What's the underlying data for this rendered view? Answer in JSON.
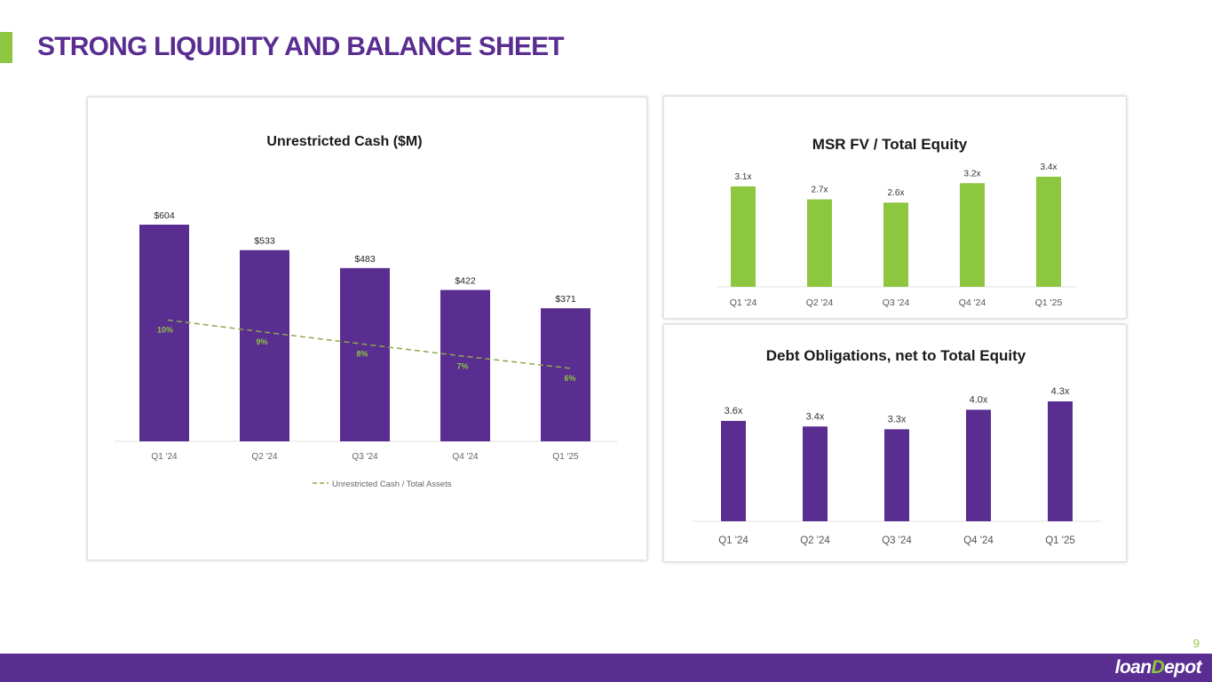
{
  "page": {
    "title": "STRONG LIQUIDITY AND BALANCE SHEET",
    "page_number": "9",
    "logo_prefix": "loan",
    "logo_mark": "D",
    "logo_suffix": "epot"
  },
  "colors": {
    "purple": "#5a2d91",
    "green": "#8dc63f",
    "dashed_line": "#8ea84a"
  },
  "chart_data": [
    {
      "id": "cash",
      "type": "bar",
      "title": "Unrestricted Cash ($M)",
      "categories": [
        "Q1 '24",
        "Q2 '24",
        "Q3 '24",
        "Q4 '24",
        "Q1 '25"
      ],
      "series": [
        {
          "name": "Unrestricted Cash ($M)",
          "values": [
            604,
            533,
            483,
            422,
            371
          ],
          "labels": [
            "$604",
            "$533",
            "$483",
            "$422",
            "$371"
          ]
        },
        {
          "name": "Unrestricted Cash / Total Assets",
          "type": "line",
          "values": [
            10,
            9,
            8,
            7,
            6
          ],
          "labels": [
            "10%",
            "9%",
            "8%",
            "7%",
            "6%"
          ]
        }
      ],
      "legend": [
        "Unrestricted Cash / Total Assets"
      ],
      "ylim": [
        0,
        604
      ],
      "y2lim": [
        0,
        25
      ]
    },
    {
      "id": "msr",
      "type": "bar",
      "title": "MSR FV / Total Equity",
      "categories": [
        "Q1 '24",
        "Q2 '24",
        "Q3 '24",
        "Q4 '24",
        "Q1 '25"
      ],
      "values": [
        3.1,
        2.7,
        2.6,
        3.2,
        3.4
      ],
      "labels": [
        "3.1x",
        "2.7x",
        "2.6x",
        "3.2x",
        "3.4x"
      ],
      "ylim": [
        0,
        3.4
      ]
    },
    {
      "id": "debt",
      "type": "bar",
      "title": "Debt Obligations, net to Total Equity",
      "categories": [
        "Q1 '24",
        "Q2 '24",
        "Q3 '24",
        "Q4 '24",
        "Q1 '25"
      ],
      "values": [
        3.6,
        3.4,
        3.3,
        4.0,
        4.3
      ],
      "labels": [
        "3.6x",
        "3.4x",
        "3.3x",
        "4.0x",
        "4.3x"
      ],
      "ylim": [
        0,
        4.3
      ]
    }
  ]
}
